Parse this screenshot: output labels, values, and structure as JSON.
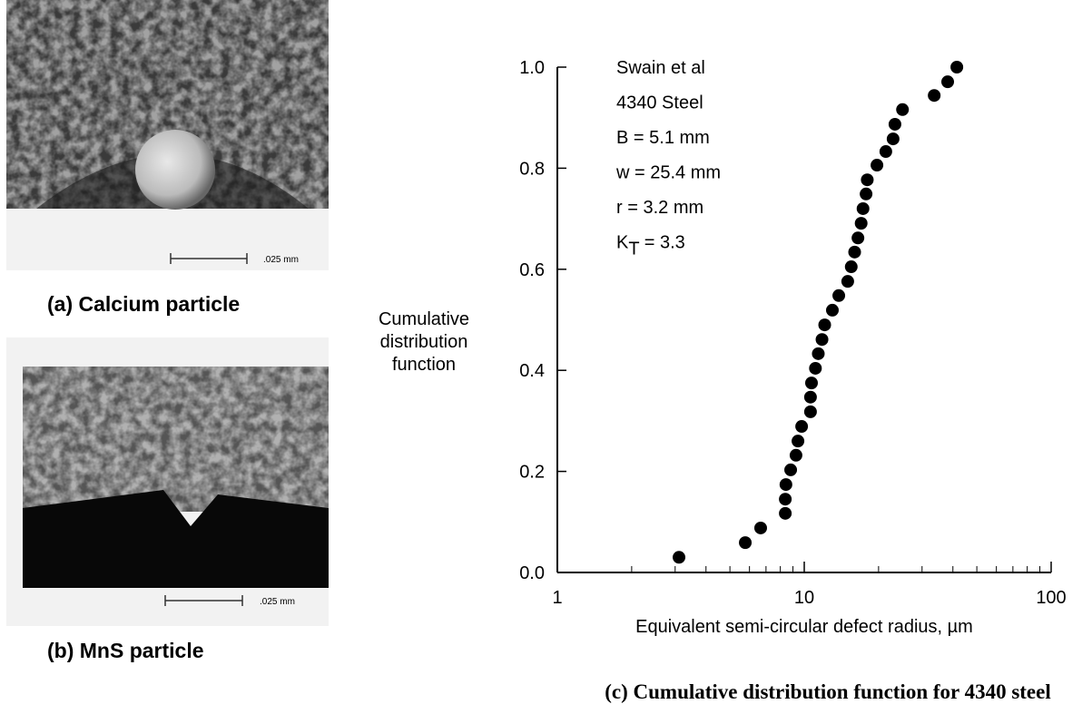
{
  "panels": {
    "a": {
      "caption": "(a) Calcium particle",
      "scale_label": ".025 mm"
    },
    "b": {
      "caption": "(b) MnS particle",
      "scale_label": ".025 mm"
    }
  },
  "chart_data": {
    "type": "scatter",
    "caption": "(c) Cumulative distribution function for 4340 steel",
    "xlabel": "Equivalent semi-circular defect radius, µm",
    "ylabel_lines": [
      "Cumulative",
      "distribution",
      "function"
    ],
    "annotations": [
      "Swain et al",
      "4340 Steel",
      "B = 5.1 mm",
      "w = 25.4 mm",
      "r = 3.2 mm"
    ],
    "kt_label": {
      "main": "K",
      "sub": "T",
      "value": " = 3.3"
    },
    "xscale": "log",
    "xlim": [
      1,
      100
    ],
    "xticks": [
      1,
      10,
      100
    ],
    "xminorticks": [
      2,
      3,
      4,
      5,
      6,
      7,
      8,
      9,
      20,
      30,
      40,
      50,
      60,
      70,
      80,
      90
    ],
    "ylim": [
      0,
      1
    ],
    "yticks": [
      {
        "value": 0,
        "label": "0.0"
      },
      0.2,
      0.4,
      0.6,
      0.8,
      {
        "value": 1,
        "label": "1.0"
      }
    ],
    "color": "#000000",
    "x": [
      3.11,
      5.77,
      6.66,
      8.38,
      8.38,
      8.43,
      8.81,
      9.26,
      9.43,
      9.76,
      10.6,
      10.6,
      10.7,
      11.1,
      11.4,
      11.8,
      12.1,
      13.0,
      13.8,
      15.0,
      15.5,
      16.0,
      16.5,
      17.0,
      17.3,
      17.8,
      18.0,
      19.7,
      21.4,
      22.9,
      23.3,
      25.0,
      33.6,
      38.1,
      41.5
    ],
    "values": [
      0.03,
      0.059,
      0.088,
      0.117,
      0.145,
      0.174,
      0.203,
      0.232,
      0.26,
      0.289,
      0.318,
      0.347,
      0.375,
      0.404,
      0.433,
      0.461,
      0.49,
      0.519,
      0.548,
      0.576,
      0.605,
      0.634,
      0.662,
      0.691,
      0.72,
      0.749,
      0.777,
      0.806,
      0.833,
      0.858,
      0.887,
      0.916,
      0.944,
      0.971,
      1.0
    ]
  }
}
